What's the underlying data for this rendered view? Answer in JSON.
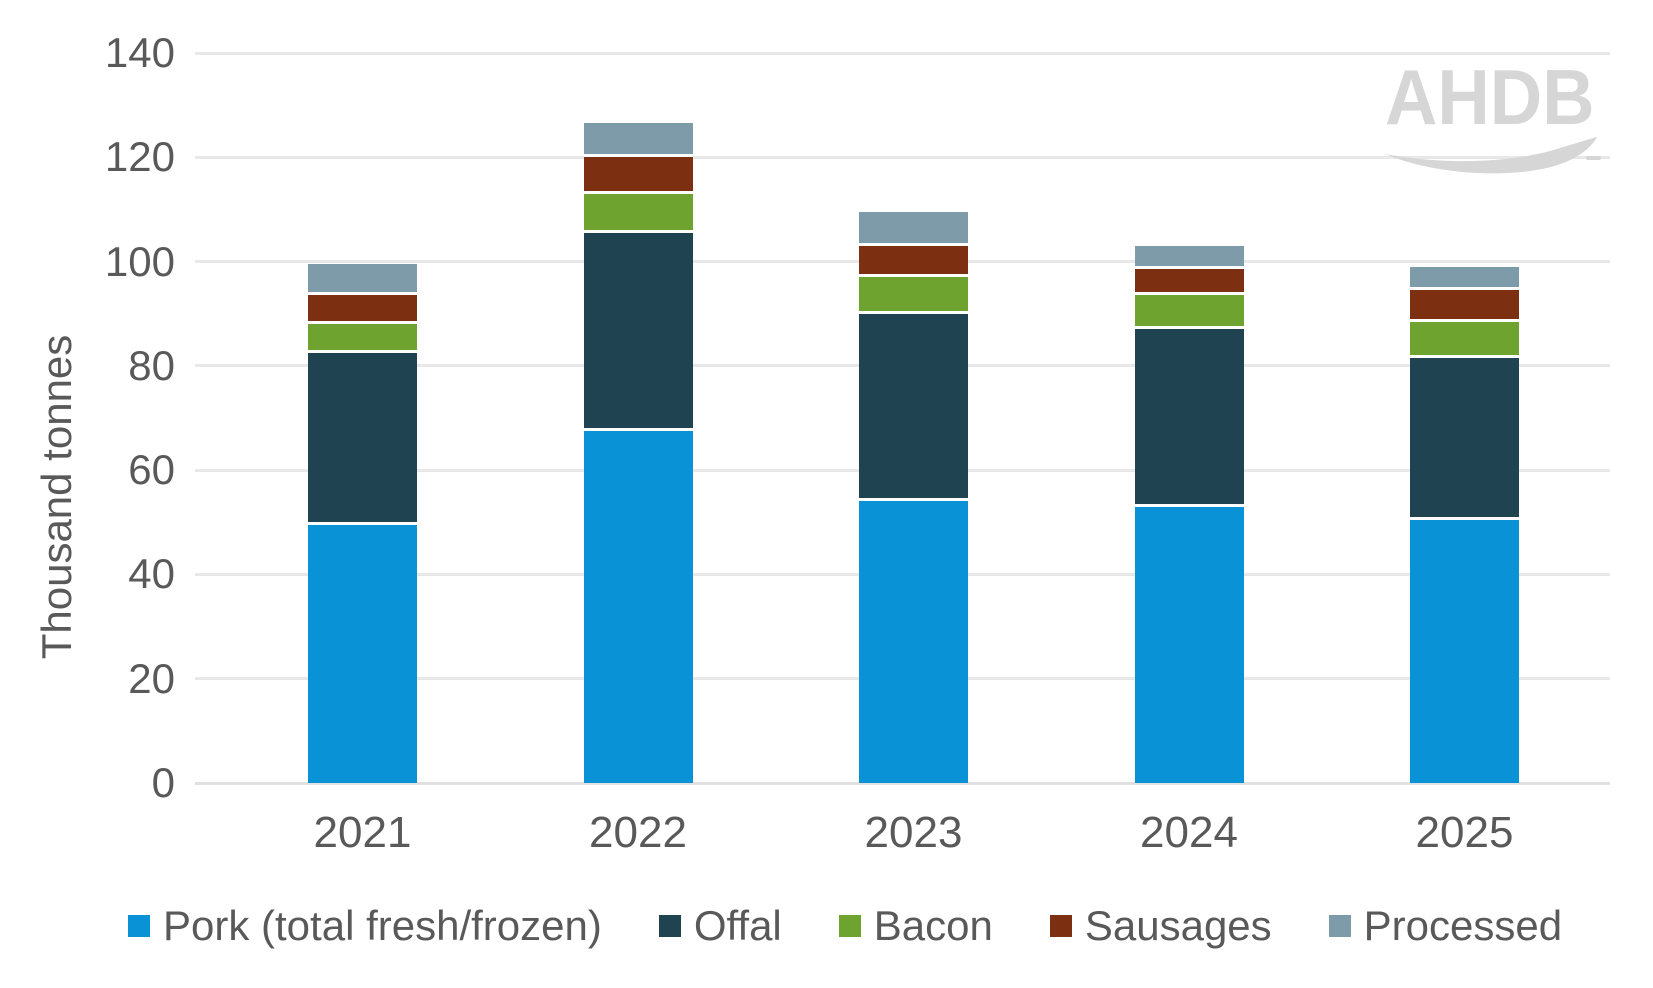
{
  "chart_data": {
    "type": "bar",
    "stacked": true,
    "title": "",
    "categories": [
      "2021",
      "2022",
      "2023",
      "2024",
      "2025"
    ],
    "series": [
      {
        "name": "Pork (total fresh/frozen)",
        "color": "#0992D6",
        "values": [
          49.5,
          67.5,
          54,
          53,
          50.5
        ]
      },
      {
        "name": "Offal",
        "color": "#1F4350",
        "values": [
          33,
          38,
          36,
          34,
          31
        ]
      },
      {
        "name": "Bacon",
        "color": "#6DA32E",
        "values": [
          5.5,
          7.5,
          7,
          6.5,
          7
        ]
      },
      {
        "name": "Sausages",
        "color": "#7C2F11",
        "values": [
          5.5,
          7,
          6,
          5,
          6
        ]
      },
      {
        "name": "Processed",
        "color": "#7D9BA8",
        "values": [
          6,
          6.5,
          6.5,
          4.5,
          4.5
        ]
      }
    ],
    "totals": [
      99.5,
      126.5,
      109.5,
      103,
      99
    ],
    "xlabel": "",
    "ylabel": "Thousand tonnes",
    "ylim": [
      0,
      140
    ],
    "ytick_step": 20,
    "yticks": [
      0,
      20,
      40,
      60,
      80,
      100,
      120,
      140
    ],
    "grid": true,
    "legend_position": "bottom"
  },
  "logo": {
    "text": "AHDB"
  },
  "colors": {
    "axis_text": "#595959",
    "gridline": "#E8E8E8",
    "background": "#FFFFFF",
    "logo": "#D6D6D6"
  }
}
